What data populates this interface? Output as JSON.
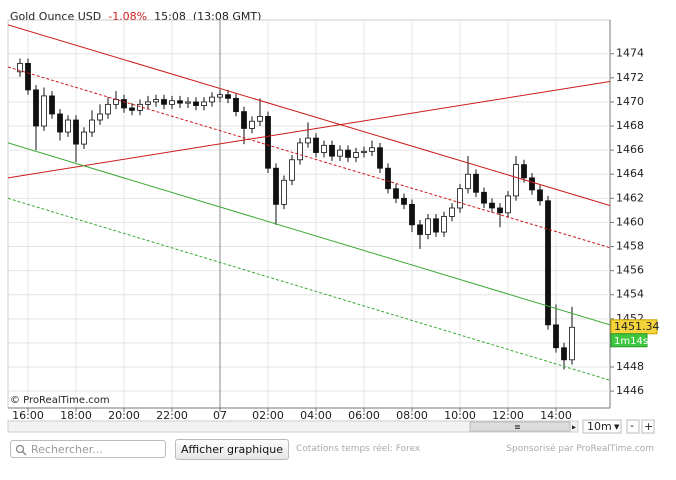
{
  "header": {
    "instrument": "Gold Ounce USD",
    "change": "-1.08%",
    "time": "15:08",
    "gmt": "(13:08 GMT)"
  },
  "chart_data": {
    "type": "candlestick",
    "x": [
      -20,
      0,
      20,
      40,
      60,
      80,
      100,
      120,
      140,
      160,
      180,
      200,
      220,
      240,
      260,
      280,
      300,
      320,
      340,
      360,
      380,
      400,
      420,
      440,
      460,
      480,
      500,
      520,
      540,
      560,
      580,
      600,
      620,
      640,
      660,
      680,
      700,
      720,
      740,
      760,
      780,
      800,
      820,
      840,
      860,
      880,
      900,
      920,
      940,
      960,
      980,
      1000,
      1020,
      1040,
      1060,
      1080,
      1100,
      1120,
      1140,
      1160,
      1180,
      1200,
      1220,
      1240,
      1260,
      1280,
      1300,
      1320,
      1340,
      1360
    ],
    "open": [
      1472.5,
      1473.2,
      1471,
      1468,
      1470.5,
      1469,
      1467.5,
      1468.5,
      1466.5,
      1467.5,
      1468.5,
      1469,
      1469.8,
      1470.2,
      1469.5,
      1469.3,
      1469.8,
      1470,
      1470.2,
      1469.8,
      1470.1,
      1469.9,
      1470,
      1469.7,
      1470,
      1470.4,
      1470.6,
      1470.3,
      1469.2,
      1467.8,
      1468.4,
      1468.8,
      1464.5,
      1461.5,
      1463.5,
      1465.2,
      1466.6,
      1467,
      1465.8,
      1466.4,
      1465.5,
      1466,
      1465.4,
      1465.8,
      1465.9,
      1466.2,
      1464.5,
      1462.8,
      1462,
      1461.5,
      1459.8,
      1459,
      1460.3,
      1459.2,
      1460.5,
      1461.2,
      1462.8,
      1464,
      1462.5,
      1461.6,
      1461.2,
      1460.8,
      1462.2,
      1464.8,
      1463.7,
      1462.7,
      1461.8,
      1451.5,
      1449.6,
      1448.6
    ],
    "high": [
      1473.6,
      1473.6,
      1471.4,
      1471.2,
      1470.9,
      1469.4,
      1468.9,
      1468.9,
      1467.9,
      1469.3,
      1469.8,
      1470.4,
      1470.9,
      1470.6,
      1469.9,
      1470.2,
      1470.5,
      1470.6,
      1470.6,
      1470.5,
      1470.5,
      1470.4,
      1470.4,
      1470.4,
      1470.8,
      1471,
      1471,
      1470.7,
      1469.6,
      1468.8,
      1470.3,
      1469.2,
      1464.9,
      1463.9,
      1465.6,
      1467,
      1468.3,
      1467.4,
      1466.8,
      1466.8,
      1466.4,
      1466.4,
      1466.2,
      1466.3,
      1466.8,
      1466.6,
      1464.9,
      1463.2,
      1462.4,
      1461.9,
      1460.2,
      1460.7,
      1460.7,
      1460.9,
      1461.6,
      1463.2,
      1465.5,
      1464.4,
      1462.9,
      1462,
      1461.6,
      1462.6,
      1465.5,
      1465.2,
      1464.1,
      1463.1,
      1462.2,
      1453.2,
      1450,
      1453
    ],
    "low": [
      1472.1,
      1470.6,
      1466,
      1467.6,
      1468.6,
      1466.8,
      1467.1,
      1465,
      1466.1,
      1467.1,
      1468.1,
      1468.6,
      1469.4,
      1469.1,
      1468.9,
      1468.9,
      1469.4,
      1469.6,
      1469.4,
      1469.4,
      1469.5,
      1469.5,
      1469.3,
      1469.3,
      1469.6,
      1470,
      1469.9,
      1468.8,
      1466.5,
      1467.4,
      1468,
      1464.1,
      1459.8,
      1461.1,
      1463.1,
      1464.8,
      1466.2,
      1465.4,
      1465.4,
      1465.1,
      1465.1,
      1465,
      1465,
      1465.4,
      1465.5,
      1464.1,
      1462.4,
      1461.6,
      1461.1,
      1459.2,
      1457.8,
      1458.6,
      1458.8,
      1458.8,
      1460.1,
      1460.8,
      1462.4,
      1462.1,
      1461.2,
      1460.8,
      1459.6,
      1460.4,
      1461.8,
      1463.3,
      1462.3,
      1461.4,
      1451.1,
      1449.2,
      1447.8,
      1448.2
    ],
    "close": [
      1473.2,
      1471,
      1468,
      1470.5,
      1469,
      1467.5,
      1468.5,
      1466.5,
      1467.5,
      1468.5,
      1469,
      1469.8,
      1470.2,
      1469.5,
      1469.3,
      1469.8,
      1470,
      1470.2,
      1469.8,
      1470.1,
      1469.9,
      1470,
      1469.7,
      1470,
      1470.4,
      1470.6,
      1470.3,
      1469.2,
      1467.8,
      1468.4,
      1468.8,
      1464.5,
      1461.5,
      1463.5,
      1465.2,
      1466.6,
      1467,
      1465.8,
      1466.4,
      1465.5,
      1466,
      1465.4,
      1465.8,
      1465.9,
      1466.2,
      1464.5,
      1462.8,
      1462,
      1461.5,
      1459.8,
      1459,
      1460.3,
      1459.2,
      1460.5,
      1461.2,
      1462.8,
      1464,
      1462.5,
      1461.6,
      1461.2,
      1460.8,
      1462.2,
      1464.8,
      1463.7,
      1462.7,
      1461.8,
      1451.5,
      1449.6,
      1448.6,
      1451.3
    ],
    "up_color": "#ffffff",
    "down_color": "#111111",
    "xlim": [
      -50,
      1455
    ],
    "ylim": [
      1444.6,
      1476.8
    ],
    "xticks": [
      {
        "value": 0,
        "label": "16:00"
      },
      {
        "value": 120,
        "label": "18:00"
      },
      {
        "value": 240,
        "label": "20:00"
      },
      {
        "value": 360,
        "label": "22:00"
      },
      {
        "value": 480,
        "label": "07"
      },
      {
        "value": 600,
        "label": "02:00"
      },
      {
        "value": 720,
        "label": "04:00"
      },
      {
        "value": 840,
        "label": "06:00"
      },
      {
        "value": 960,
        "label": "08:00"
      },
      {
        "value": 1080,
        "label": "10:00"
      },
      {
        "value": 1200,
        "label": "12:00"
      },
      {
        "value": 1320,
        "label": "14:00"
      }
    ],
    "yticks": [
      1446,
      1448,
      1450,
      1452,
      1454,
      1456,
      1458,
      1460,
      1462,
      1464,
      1466,
      1468,
      1470,
      1472,
      1474
    ],
    "grid": true,
    "day_separator": 480,
    "trend_lines": [
      {
        "color": "#cc1a1a",
        "dashed": false,
        "x": [
          -50,
          1455
        ],
        "y": [
          1476.4,
          1461.4
        ]
      },
      {
        "color": "#cc1a1a",
        "dashed": true,
        "x": [
          -50,
          1455
        ],
        "y": [
          1472.9,
          1457.9
        ]
      },
      {
        "color": "#cc1a1a",
        "dashed": false,
        "x": [
          -50,
          1455
        ],
        "y": [
          1463.7,
          1471.7
        ]
      },
      {
        "color": "#3aaa35",
        "dashed": false,
        "x": [
          -50,
          1455
        ],
        "y": [
          1466.6,
          1451.5
        ]
      },
      {
        "color": "#3aaa35",
        "dashed": true,
        "x": [
          -50,
          1455
        ],
        "y": [
          1462.0,
          1446.9
        ]
      }
    ],
    "last_price": 1451.34,
    "countdown": "1m14s",
    "copyright": "© ProRealTime.com",
    "interval": "10m"
  },
  "toolbar": {
    "search_placeholder": "Rechercher...",
    "button": "Afficher graphique",
    "quotes": "Cotations temps réel: Forex",
    "sponsor": "Sponsorisé par ProRealTime.com"
  }
}
